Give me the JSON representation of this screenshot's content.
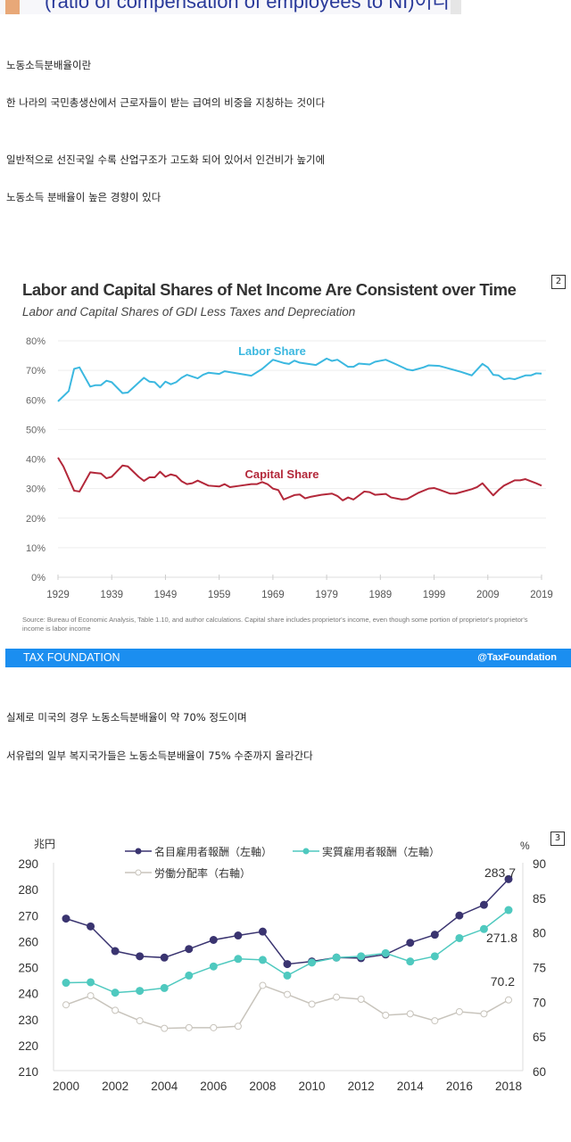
{
  "banner": {
    "text": "(ratio of compensation of employees to NI)이다."
  },
  "paragraphs": [
    "노동소득분배율이란",
    "한 나라의 국민총생산에서 근로자들이 받는 급여의 비중을 지칭하는 것이다",
    "일반적으로 선진국일 수록 산업구조가 고도화 되어 있어서 인건비가 높기에",
    "노동소득 분배율이 높은 경향이 있다",
    "실제로 미국의 경우 노동소득분배율이 약 70% 정도이며",
    "서유럽의 일부 복지국가들은 노동소득분배율이 75% 수준까지 올라간다"
  ],
  "figure1": {
    "badge": "2",
    "source": "Source: Bureau of Economic Analysis, Table 1.10, and author calculations. Capital share includes proprietor's income, even though some portion of proprietor's proprietor's income is labor income",
    "footer_left": "TAX FOUNDATION",
    "footer_right": "@TaxFoundation"
  },
  "figure2": {
    "badge": "3"
  },
  "chart_data": [
    {
      "type": "line",
      "title": "Labor and Capital Shares of Net Income Are Consistent over Time",
      "subtitle": "Labor and Capital Shares of GDI Less Taxes and Depreciation",
      "ylim": [
        0,
        80
      ],
      "yticks": [
        "0%",
        "10%",
        "20%",
        "30%",
        "40%",
        "50%",
        "60%",
        "70%",
        "80%"
      ],
      "xticks": [
        "1929",
        "1939",
        "1949",
        "1959",
        "1969",
        "1979",
        "1989",
        "1999",
        "2009",
        "2019"
      ],
      "xlim": [
        1929,
        2019
      ],
      "grid": true,
      "colors": {
        "labor": "#3bb8e0",
        "capital": "#b3283a"
      },
      "series": [
        {
          "name": "Labor Share",
          "points": [
            [
              1929,
              59.5
            ],
            [
              1931,
              63
            ],
            [
              1932,
              70.5
            ],
            [
              1933,
              71
            ],
            [
              1935,
              64.5
            ],
            [
              1936,
              65
            ],
            [
              1937,
              65
            ],
            [
              1938,
              66.5
            ],
            [
              1939,
              66
            ],
            [
              1941,
              62.3
            ],
            [
              1942,
              62.5
            ],
            [
              1945,
              67.5
            ],
            [
              1946,
              66.2
            ],
            [
              1947,
              66
            ],
            [
              1948,
              64.2
            ],
            [
              1949,
              66.2
            ],
            [
              1950,
              65.3
            ],
            [
              1951,
              66
            ],
            [
              1952,
              67.5
            ],
            [
              1953,
              68.5
            ],
            [
              1955,
              67.3
            ],
            [
              1956,
              68.5
            ],
            [
              1957,
              69.2
            ],
            [
              1959,
              68.8
            ],
            [
              1960,
              69.7
            ],
            [
              1964,
              68.5
            ],
            [
              1965,
              68.2
            ],
            [
              1967,
              70.5
            ],
            [
              1969,
              73.6
            ],
            [
              1971,
              72.5
            ],
            [
              1972,
              72.2
            ],
            [
              1973,
              73.3
            ],
            [
              1974,
              72.6
            ],
            [
              1977,
              71.8
            ],
            [
              1979,
              74
            ],
            [
              1980,
              73.2
            ],
            [
              1981,
              73.6
            ],
            [
              1983,
              71.2
            ],
            [
              1984,
              71.2
            ],
            [
              1985,
              72.3
            ],
            [
              1987,
              72
            ],
            [
              1988,
              72.9
            ],
            [
              1990,
              73.6
            ],
            [
              1992,
              72
            ],
            [
              1994,
              70.3
            ],
            [
              1995,
              70
            ],
            [
              1997,
              71
            ],
            [
              1998,
              71.7
            ],
            [
              2000,
              71.5
            ],
            [
              2001,
              71
            ],
            [
              2003,
              70
            ],
            [
              2004,
              69.5
            ],
            [
              2006,
              68.3
            ],
            [
              2008,
              72.2
            ],
            [
              2009,
              71
            ],
            [
              2010,
              68.5
            ],
            [
              2011,
              68.3
            ],
            [
              2012,
              67
            ],
            [
              2013,
              67.3
            ],
            [
              2014,
              67
            ],
            [
              2016,
              68.3
            ],
            [
              2017,
              68.3
            ],
            [
              2018,
              69
            ],
            [
              2019,
              68.9
            ]
          ]
        },
        {
          "name": "Capital Share",
          "points": [
            [
              1929,
              40.5
            ],
            [
              1930,
              37.5
            ],
            [
              1932,
              29.3
            ],
            [
              1933,
              29
            ],
            [
              1935,
              35.5
            ],
            [
              1936,
              35.3
            ],
            [
              1937,
              35.1
            ],
            [
              1938,
              33.5
            ],
            [
              1939,
              34
            ],
            [
              1941,
              37.8
            ],
            [
              1942,
              37.5
            ],
            [
              1944,
              34
            ],
            [
              1945,
              32.6
            ],
            [
              1946,
              33.8
            ],
            [
              1947,
              33.8
            ],
            [
              1948,
              35.7
            ],
            [
              1949,
              34
            ],
            [
              1950,
              34.8
            ],
            [
              1951,
              34.3
            ],
            [
              1952,
              32.5
            ],
            [
              1953,
              31.5
            ],
            [
              1954,
              31.8
            ],
            [
              1955,
              32.7
            ],
            [
              1957,
              31
            ],
            [
              1959,
              30.7
            ],
            [
              1960,
              31.5
            ],
            [
              1961,
              30.5
            ],
            [
              1963,
              31
            ],
            [
              1965,
              31.5
            ],
            [
              1966,
              31.5
            ],
            [
              1967,
              32.2
            ],
            [
              1968,
              31.5
            ],
            [
              1969,
              30
            ],
            [
              1970,
              29.5
            ],
            [
              1971,
              26.3
            ],
            [
              1973,
              27.8
            ],
            [
              1974,
              28
            ],
            [
              1975,
              26.7
            ],
            [
              1976,
              27.2
            ],
            [
              1978,
              27.9
            ],
            [
              1980,
              28.3
            ],
            [
              1981,
              27.5
            ],
            [
              1982,
              26
            ],
            [
              1983,
              27
            ],
            [
              1984,
              26.3
            ],
            [
              1986,
              29
            ],
            [
              1987,
              28.8
            ],
            [
              1988,
              27.9
            ],
            [
              1990,
              28.2
            ],
            [
              1991,
              27
            ],
            [
              1993,
              26.3
            ],
            [
              1994,
              26.5
            ],
            [
              1996,
              28.5
            ],
            [
              1998,
              30
            ],
            [
              1999,
              30.2
            ],
            [
              2000,
              29.6
            ],
            [
              2002,
              28.3
            ],
            [
              2003,
              28.3
            ],
            [
              2004,
              28.8
            ],
            [
              2006,
              29.8
            ],
            [
              2007,
              30.5
            ],
            [
              2008,
              31.8
            ],
            [
              2010,
              27.7
            ],
            [
              2011,
              29.5
            ],
            [
              2012,
              31
            ],
            [
              2014,
              32.8
            ],
            [
              2015,
              32.8
            ],
            [
              2016,
              33.2
            ],
            [
              2018,
              31.8
            ],
            [
              2019,
              31
            ]
          ]
        }
      ]
    },
    {
      "type": "line",
      "left_unit": "兆円",
      "right_unit": "%",
      "x": [
        2000,
        2001,
        2002,
        2003,
        2004,
        2005,
        2006,
        2007,
        2008,
        2009,
        2010,
        2011,
        2012,
        2013,
        2014,
        2015,
        2016,
        2017,
        2018
      ],
      "xticks": [
        "2000",
        "2002",
        "2004",
        "2006",
        "2008",
        "2010",
        "2012",
        "2014",
        "2016",
        "2018"
      ],
      "ylim_left": [
        210,
        290
      ],
      "yticks_left": [
        "210",
        "220",
        "230",
        "240",
        "250",
        "260",
        "270",
        "280",
        "290"
      ],
      "ylim_right": [
        60,
        90
      ],
      "yticks_right": [
        "60",
        "65",
        "70",
        "75",
        "80",
        "85",
        "90"
      ],
      "series": [
        {
          "name": "名目雇用者報酬（左軸）",
          "axis": "left",
          "color": "#3a3470",
          "values": [
            268.5,
            265.5,
            256,
            254,
            253.5,
            256.8,
            260.3,
            262,
            263.5,
            251,
            252,
            253.5,
            253.3,
            254.7,
            259.2,
            262.3,
            269.7,
            273.8,
            283.7
          ]
        },
        {
          "name": "実質雇用者報酬（左軸）",
          "axis": "left",
          "color": "#4fc9bf",
          "values": [
            243.8,
            244,
            240,
            240.7,
            241.8,
            246.6,
            250.1,
            253,
            252.6,
            246.6,
            251.6,
            253.5,
            254,
            255.2,
            252,
            254,
            261,
            264.5,
            271.8
          ]
        },
        {
          "name": "労働分配率（右軸）",
          "axis": "right",
          "color": "#c8c4bc",
          "values": [
            69.5,
            70.8,
            68.7,
            67.2,
            66.1,
            66.2,
            66.2,
            66.4,
            72.3,
            71.0,
            69.6,
            70.6,
            70.3,
            68.0,
            68.2,
            67.2,
            68.5,
            68.2,
            70.2
          ]
        }
      ],
      "annotations": [
        "283.7",
        "271.8",
        "70.2"
      ]
    }
  ]
}
